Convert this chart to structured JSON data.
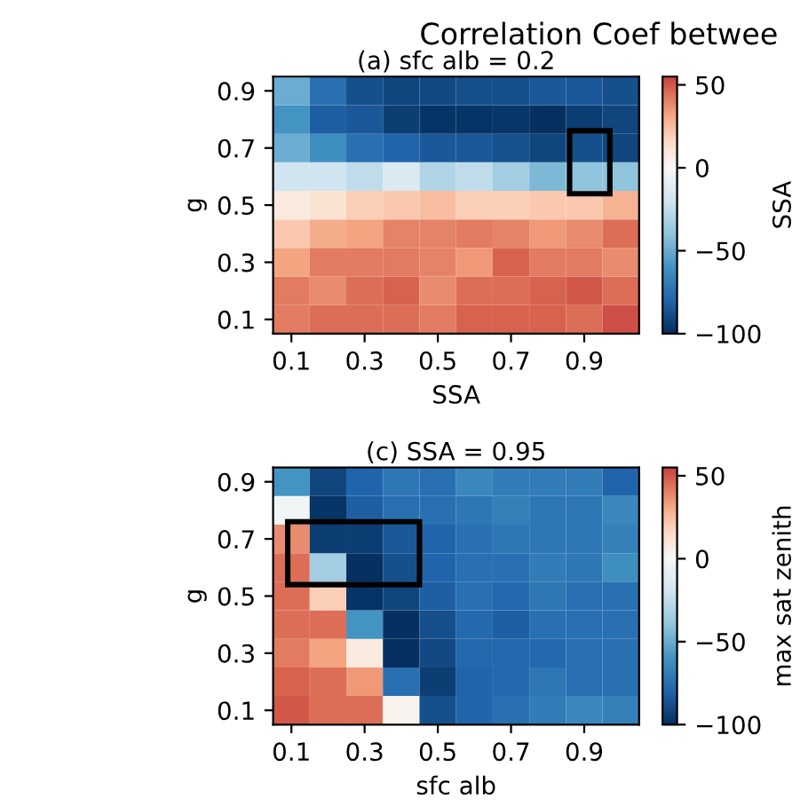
{
  "chart_data": [
    {
      "type": "heatmap",
      "title": "Correlation Coef betwee",
      "subtitle": "(a) sfc alb = 0.2",
      "xlabel": "SSA",
      "ylabel": "g",
      "clabel": "SSA",
      "categories": [
        "0.1",
        null,
        "0.3",
        null,
        "0.5",
        null,
        "0.7",
        null,
        "0.9",
        null
      ],
      "y_categories": [
        "0.9",
        null,
        "0.7",
        null,
        "0.5",
        null,
        "0.3",
        null,
        "0.1"
      ],
      "cells": [
        [
          -50,
          -75,
          -88,
          -92,
          -90,
          -88,
          -88,
          -85,
          -85,
          -88
        ],
        [
          -60,
          -82,
          -85,
          -95,
          -98,
          -98,
          -97,
          -100,
          -95,
          -92
        ],
        [
          -50,
          -62,
          -75,
          -80,
          -85,
          -85,
          -87,
          -92,
          -88,
          -92
        ],
        [
          -20,
          -20,
          -25,
          -15,
          -30,
          -25,
          -35,
          -45,
          -40,
          -40
        ],
        [
          8,
          12,
          20,
          22,
          25,
          20,
          20,
          22,
          22,
          28
        ],
        [
          22,
          30,
          32,
          40,
          40,
          42,
          40,
          35,
          38,
          45
        ],
        [
          32,
          42,
          42,
          42,
          40,
          35,
          48,
          42,
          42,
          38
        ],
        [
          42,
          38,
          45,
          48,
          38,
          45,
          45,
          48,
          50,
          45
        ],
        [
          42,
          45,
          45,
          45,
          42,
          48,
          48,
          48,
          45,
          52
        ]
      ],
      "clim": [
        -100,
        55
      ],
      "cticks": [
        -100,
        -50,
        0,
        50
      ]
    },
    {
      "type": "heatmap",
      "title": "(c) SSA = 0.95",
      "xlabel": "sfc alb",
      "ylabel": "g",
      "clabel": "max sat zenith",
      "categories": [
        "0.1",
        null,
        "0.3",
        null,
        "0.5",
        null,
        "0.7",
        null,
        "0.9",
        null
      ],
      "y_categories": [
        "0.9",
        null,
        "0.7",
        null,
        "0.5",
        null,
        "0.3",
        null,
        "0.1"
      ],
      "cells": [
        [
          -60,
          -92,
          -80,
          -72,
          -75,
          -65,
          -70,
          -70,
          -70,
          -80
        ],
        [
          -3,
          -98,
          -82,
          -75,
          -75,
          -72,
          -68,
          -72,
          -72,
          -65
        ],
        [
          38,
          -95,
          -95,
          -85,
          -80,
          -75,
          -72,
          -72,
          -72,
          -68
        ],
        [
          45,
          -35,
          -100,
          -88,
          -80,
          -75,
          -75,
          -70,
          -72,
          -62
        ],
        [
          45,
          20,
          -98,
          -92,
          -82,
          -75,
          -78,
          -72,
          -75,
          -75
        ],
        [
          45,
          45,
          -60,
          -100,
          -88,
          -78,
          -82,
          -75,
          -75,
          -75
        ],
        [
          42,
          32,
          8,
          -100,
          -90,
          -78,
          -78,
          -78,
          -75,
          -75
        ],
        [
          48,
          45,
          35,
          -75,
          -95,
          -80,
          -78,
          -72,
          -75,
          -75
        ],
        [
          50,
          45,
          45,
          3,
          -88,
          -80,
          -75,
          -70,
          -65,
          -68
        ]
      ],
      "clim": [
        -100,
        55
      ],
      "cticks": [
        -100,
        -50,
        0,
        50
      ]
    }
  ]
}
